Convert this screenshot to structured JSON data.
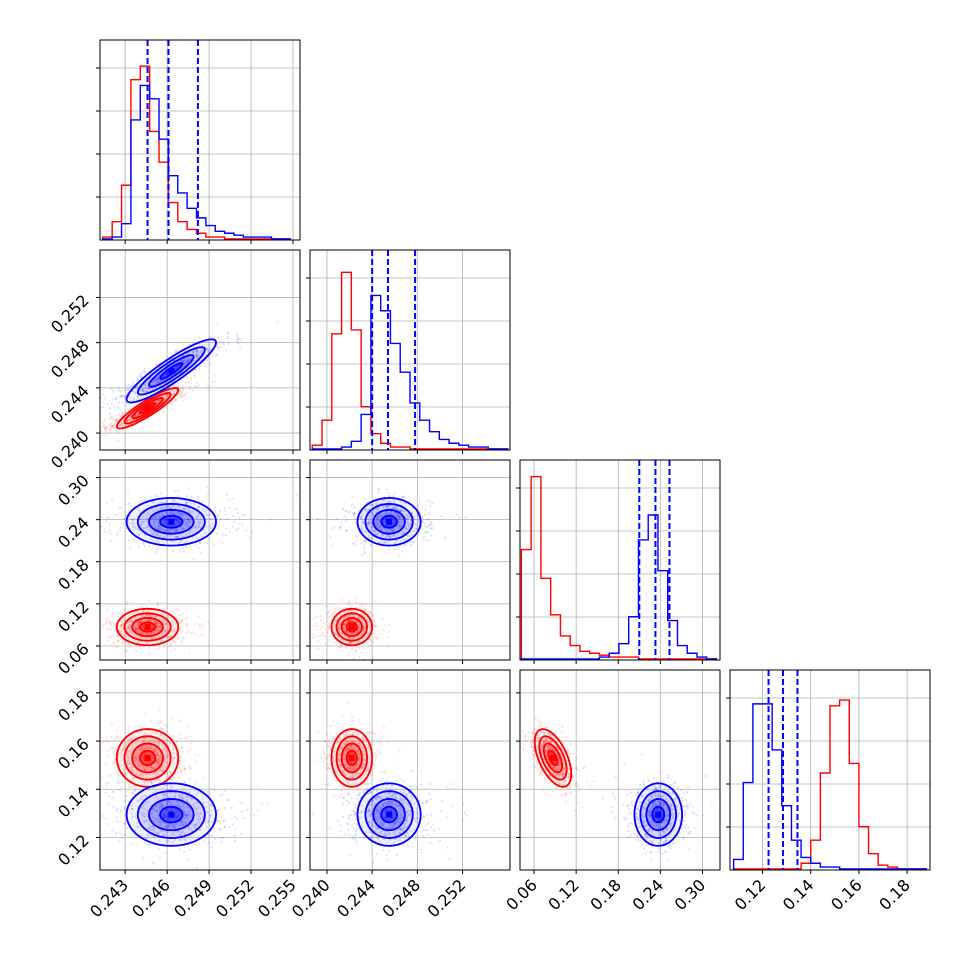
{
  "colors": {
    "red": "#ff0000",
    "blue": "#0000ff"
  },
  "chart_data": {
    "type": "corner",
    "params": [
      {
        "ticks": [
          "0.243",
          "0.246",
          "0.249",
          "0.252",
          "0.255"
        ],
        "tick_values": [
          0.243,
          0.246,
          0.249,
          0.252,
          0.255
        ],
        "range": [
          0.2412,
          0.2555
        ]
      },
      {
        "ticks": [
          "0.240",
          "0.244",
          "0.248",
          "0.252"
        ],
        "tick_values": [
          0.24,
          0.244,
          0.248,
          0.252
        ],
        "range": [
          0.2385,
          0.2562
        ]
      },
      {
        "ticks": [
          "0.06",
          "0.12",
          "0.18",
          "0.24",
          "0.30"
        ],
        "tick_values": [
          0.06,
          0.12,
          0.18,
          0.24,
          0.3
        ],
        "range": [
          0.04,
          0.325
        ]
      },
      {
        "ticks": [
          "0.12",
          "0.14",
          "0.16",
          "0.18"
        ],
        "tick_values": [
          0.12,
          0.14,
          0.16,
          0.18
        ],
        "range": [
          0.1065,
          0.1895
        ]
      }
    ],
    "series": [
      {
        "color": "red",
        "means": [
          0.2446,
          0.2422,
          0.087,
          0.153
        ],
        "sds": [
          0.0011,
          0.0009,
          0.013,
          0.006
        ],
        "correlations": [
          [
            0,
            1,
            0.9
          ],
          [
            2,
            3,
            -0.55
          ]
        ],
        "histograms": [
          {
            "edges_range": [
              0.2414,
              0.2548
            ],
            "counts": [
              0.01,
              0.09,
              0.28,
              0.83,
              0.9,
              0.56,
              0.4,
              0.19,
              0.09,
              0.05,
              0.03,
              0.01,
              0.01,
              0,
              0,
              0,
              0,
              0,
              0,
              0
            ]
          },
          {
            "edges_range": [
              0.2387,
              0.256
            ],
            "counts": [
              0.02,
              0.15,
              0.6,
              0.92,
              0.62,
              0.22,
              0.08,
              0.03,
              0.01,
              0.01,
              0,
              0,
              0,
              0,
              0,
              0,
              0,
              0,
              0,
              0
            ]
          },
          {
            "edges_range": [
              0.042,
              0.32
            ],
            "counts": [
              0.57,
              0.95,
              0.42,
              0.23,
              0.12,
              0.07,
              0.04,
              0.03,
              0.02,
              0.01,
              0.01,
              0.01,
              0,
              0,
              0,
              0,
              0,
              0,
              0,
              0
            ]
          },
          {
            "edges_range": [
              0.108,
              0.188
            ],
            "counts": [
              0,
              0,
              0,
              0,
              0,
              0,
              0,
              0.03,
              0.15,
              0.5,
              0.85,
              0.88,
              0.55,
              0.22,
              0.08,
              0.02,
              0.01,
              0,
              0,
              0
            ]
          }
        ]
      },
      {
        "color": "blue",
        "means": [
          0.2463,
          0.2455,
          0.237,
          0.1295
        ],
        "sds": [
          0.0016,
          0.0014,
          0.017,
          0.0065
        ],
        "correlations": [
          [
            0,
            1,
            0.9
          ],
          [
            2,
            3,
            0.0
          ]
        ],
        "histograms": [
          {
            "edges_range": [
              0.2414,
              0.2548
            ],
            "counts": [
              0,
              0.01,
              0.08,
              0.62,
              0.8,
              0.73,
              0.52,
              0.33,
              0.24,
              0.16,
              0.11,
              0.07,
              0.04,
              0.03,
              0.02,
              0.01,
              0.01,
              0.01,
              0,
              0
            ]
          },
          {
            "edges_range": [
              0.2387,
              0.256
            ],
            "counts": [
              0,
              0,
              0,
              0.01,
              0.04,
              0.18,
              0.8,
              0.72,
              0.55,
              0.4,
              0.24,
              0.15,
              0.09,
              0.05,
              0.03,
              0.02,
              0.01,
              0.01,
              0,
              0
            ]
          },
          {
            "edges_range": [
              0.042,
              0.32
            ],
            "counts": [
              0,
              0,
              0,
              0,
              0,
              0,
              0,
              0,
              0.01,
              0.03,
              0.08,
              0.22,
              0.62,
              0.75,
              0.46,
              0.2,
              0.07,
              0.03,
              0.01,
              0
            ]
          },
          {
            "edges_range": [
              0.108,
              0.188
            ],
            "counts": [
              0.05,
              0.45,
              0.86,
              0.86,
              0.62,
              0.33,
              0.15,
              0.06,
              0.03,
              0.01,
              0.01,
              0,
              0,
              0,
              0,
              0,
              0,
              0,
              0,
              0
            ]
          }
        ]
      }
    ],
    "quantiles": {
      "color": "blue",
      "values": [
        [
          0.2446,
          0.2461,
          0.2482
        ],
        [
          0.244,
          0.2454,
          0.2478
        ],
        [
          0.21,
          0.233,
          0.253
        ],
        [
          0.1225,
          0.1285,
          0.1345
        ]
      ]
    },
    "contour_levels_sigma": [
      0.5,
      1.0,
      1.5,
      2.0
    ],
    "grid": true,
    "title": "",
    "xlabel": "",
    "ylabel": ""
  }
}
